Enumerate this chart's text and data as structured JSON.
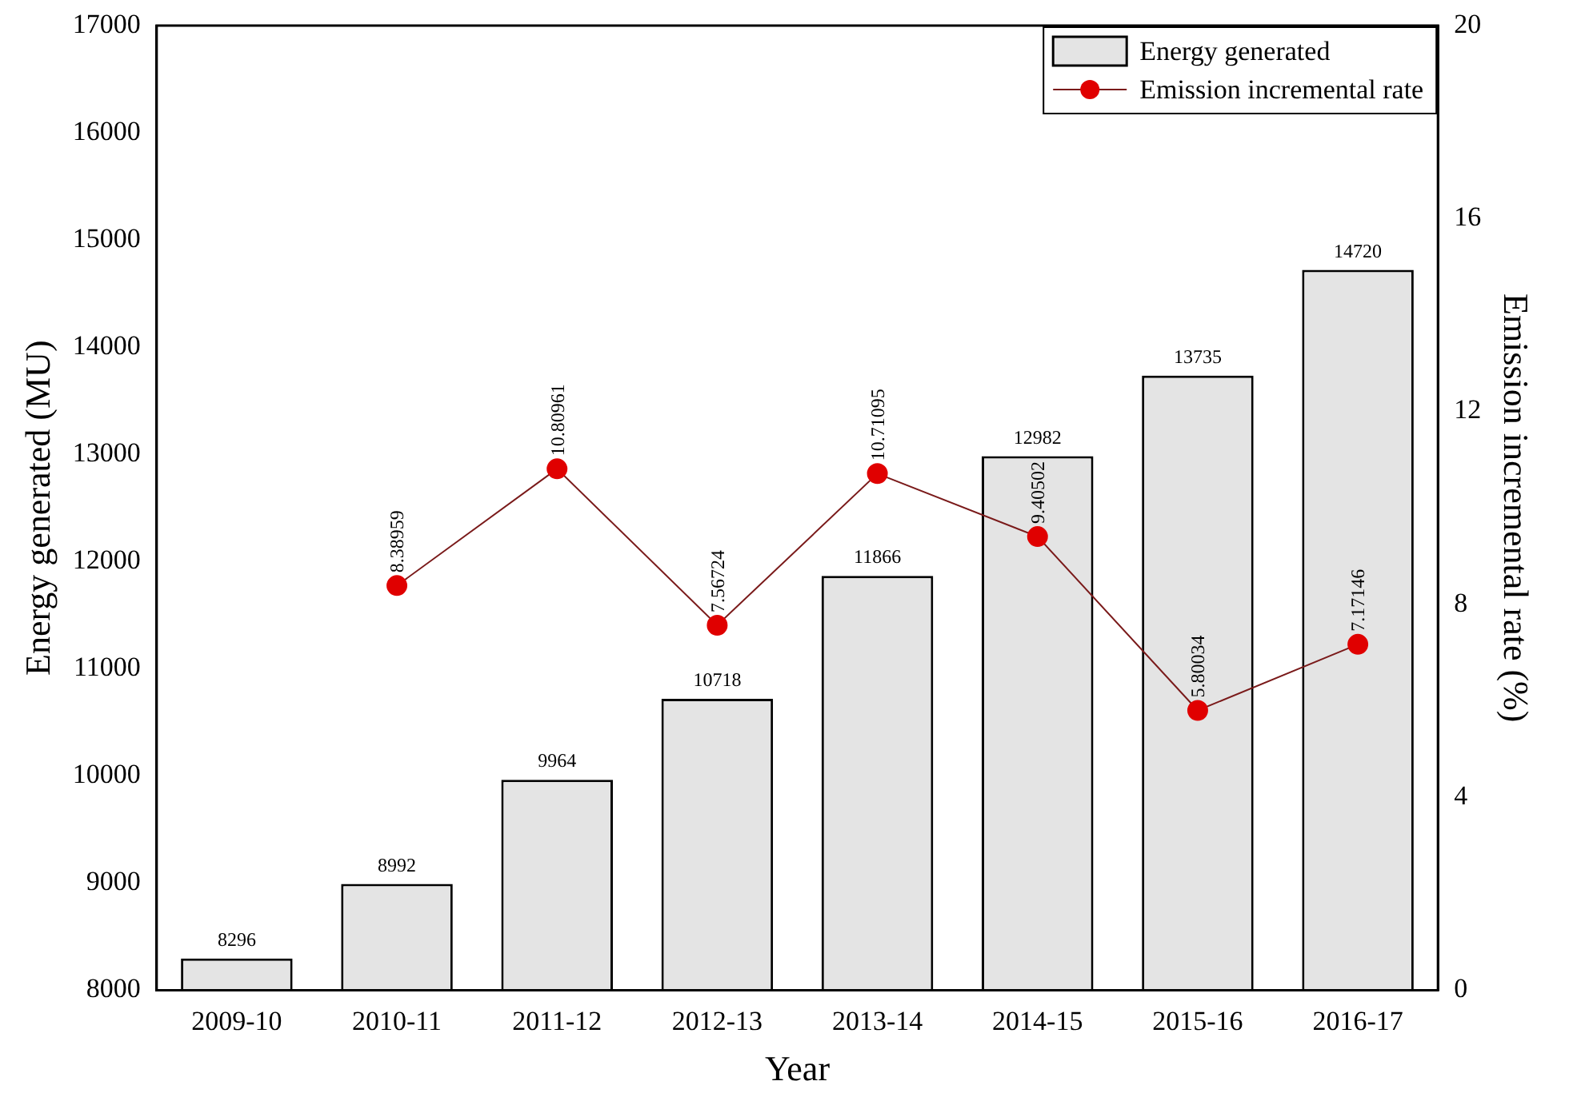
{
  "chart_data": {
    "type": "bar",
    "xlabel": "Year",
    "ylabel": "Energy generated (MU)",
    "y2label": "Emission incremental rate (%)",
    "categories": [
      "2009-10",
      "2010-11",
      "2011-12",
      "2012-13",
      "2013-14",
      "2014-15",
      "2015-16",
      "2016-17"
    ],
    "series": [
      {
        "name": "Energy generated",
        "color": "#e4e4e4",
        "values": [
          8296,
          8992,
          9964,
          10718,
          11866,
          12982,
          13735,
          14720
        ]
      },
      {
        "name": "Emission incremental rate",
        "type": "line",
        "axis": "y2",
        "color": "#e00000",
        "marker": "circle",
        "values": [
          null,
          8.38959,
          10.80961,
          7.56724,
          10.71095,
          9.40502,
          5.80034,
          7.17146
        ]
      }
    ],
    "ylim": [
      8000,
      17000
    ],
    "yticks": [
      8000,
      9000,
      10000,
      11000,
      12000,
      13000,
      14000,
      15000,
      16000,
      17000
    ],
    "y2lim": [
      0,
      20
    ],
    "y2ticks": [
      0,
      4,
      8,
      12,
      16,
      20
    ],
    "data_labels": true,
    "legend": "top right",
    "grid": false
  }
}
